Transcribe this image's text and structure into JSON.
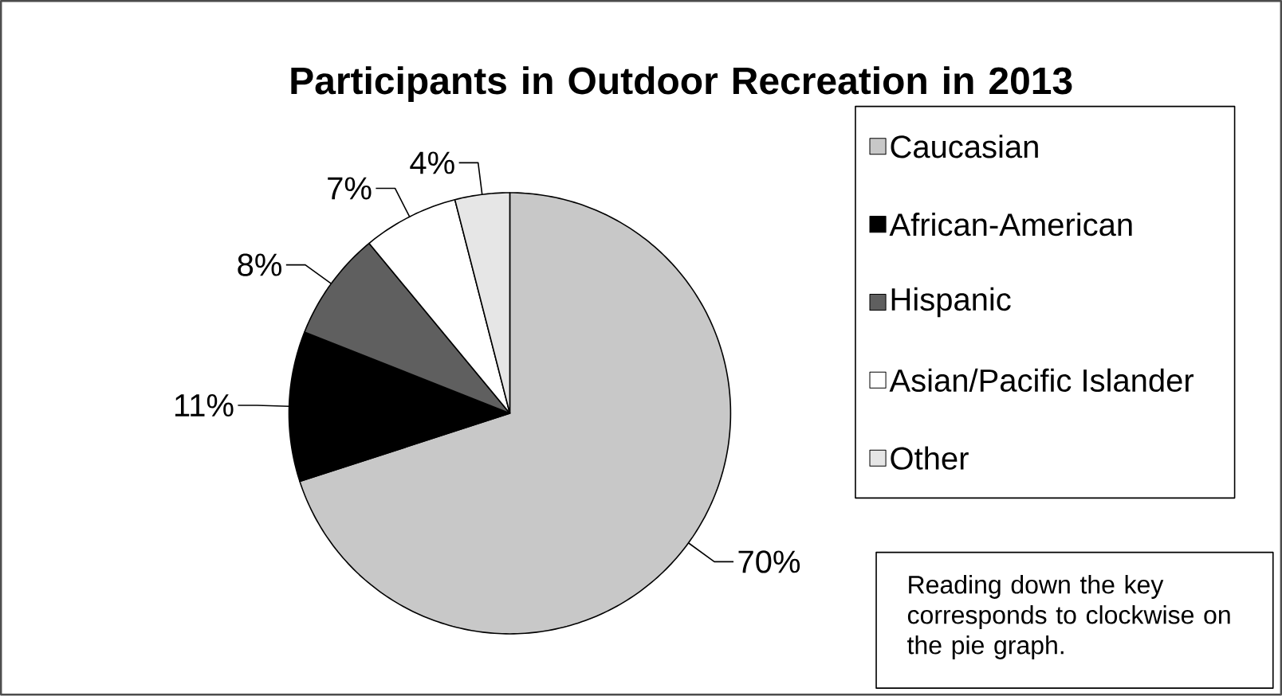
{
  "chart_data": {
    "type": "pie",
    "title": "Participants in Outdoor Recreation in 2013",
    "categories": [
      "Caucasian",
      "African-American",
      "Hispanic",
      "Asian/Pacific Islander",
      "Other"
    ],
    "values": [
      70,
      11,
      8,
      7,
      4
    ],
    "colors": [
      "#c8c8c8",
      "#000000",
      "#5f5f5f",
      "#ffffff",
      "#e6e6e6"
    ],
    "value_labels": [
      "70%",
      "11%",
      "8%",
      "7%",
      "4%"
    ],
    "legend": "right",
    "annotations": [
      "Reading down the key corresponds to clockwise on the pie graph."
    ]
  }
}
